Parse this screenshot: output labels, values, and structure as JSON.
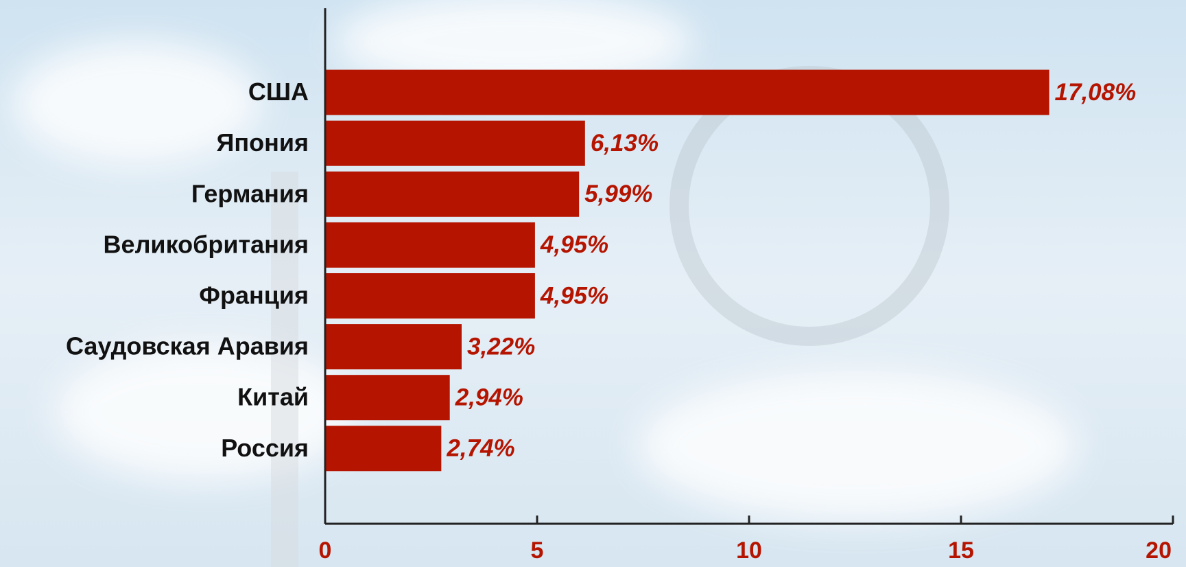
{
  "chart_data": {
    "type": "hbar",
    "categories": [
      "США",
      "Япония",
      "Германия",
      "Великобритания",
      "Франция",
      "Саудовская Аравия",
      "Китай",
      "Россия"
    ],
    "values": [
      17.08,
      6.13,
      5.99,
      4.95,
      4.95,
      3.22,
      2.94,
      2.74
    ],
    "value_labels": [
      "17,08%",
      "6,13%",
      "5,99%",
      "4,95%",
      "4,95%",
      "3,22%",
      "2,94%",
      "2,74%"
    ],
    "color": "#b51400",
    "xlim": [
      0,
      20
    ],
    "xticks": [
      0,
      5,
      10,
      15,
      20
    ]
  }
}
